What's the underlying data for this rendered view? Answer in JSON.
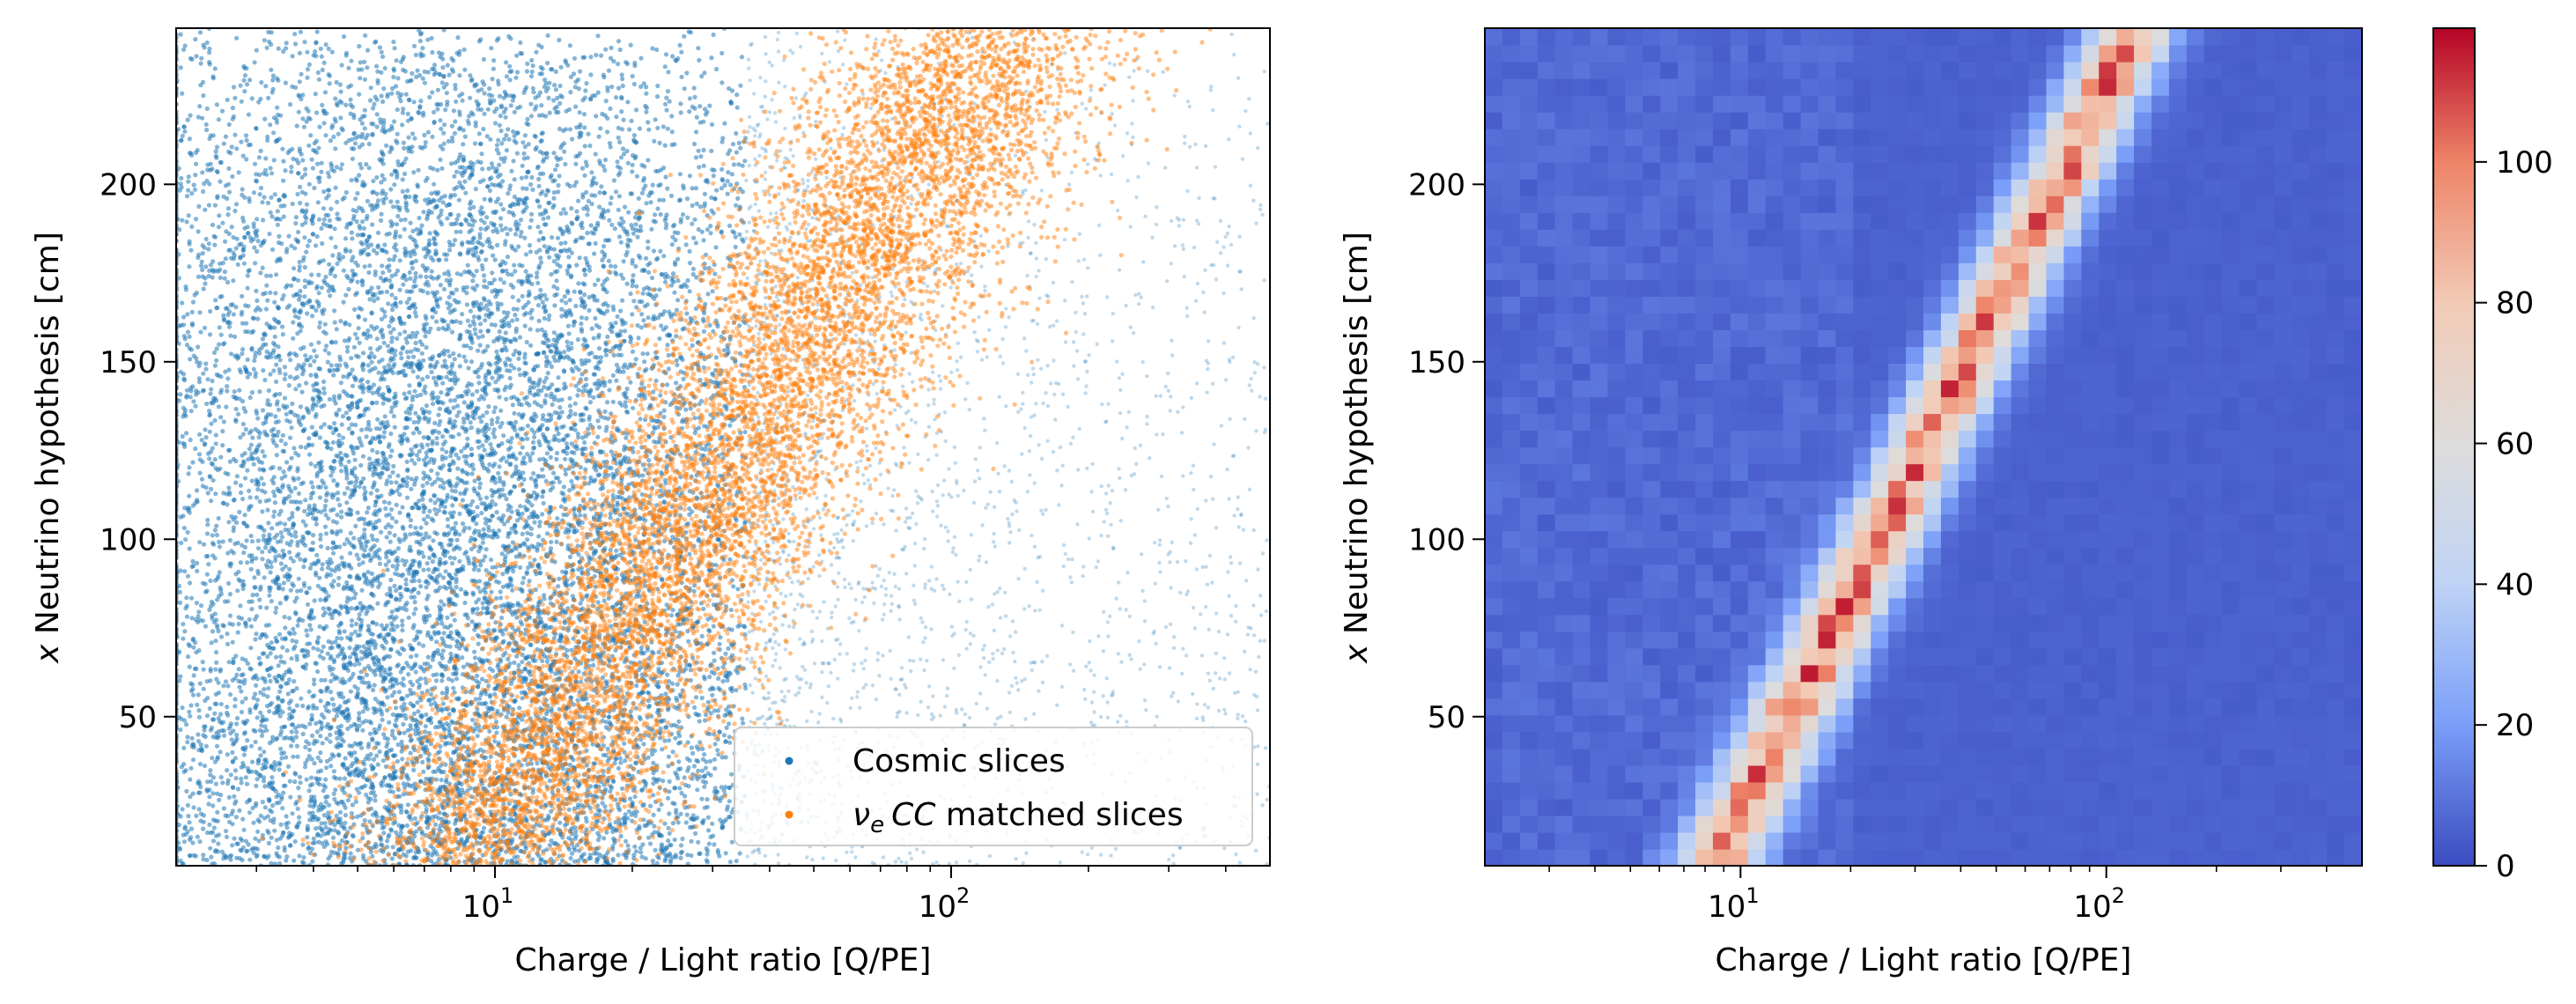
{
  "chart_data": [
    {
      "type": "scatter",
      "xlabel": "Charge / Light ratio [Q/PE]",
      "ylabel": "x Neutrino hypothesis [cm]",
      "ylabel_italic_part": "x",
      "ylabel_rest": " Neutrino hypothesis [cm]",
      "xscale": "log",
      "xlim": [
        2,
        500
      ],
      "ylim": [
        8,
        244
      ],
      "xticks": [
        {
          "value": 10,
          "base": "10",
          "exp": "1"
        },
        {
          "value": 100,
          "base": "10",
          "exp": "2"
        }
      ],
      "yticks": [
        50,
        100,
        150,
        200
      ],
      "legend_position": "lower right",
      "series": [
        {
          "name": "Cosmic slices",
          "color": "#1f77b4",
          "distribution": "broad cloud centred near Q/PE 8, x 50–244; density falls toward high Q/PE",
          "points_sampled": 14000
        },
        {
          "name": "νe CC matched slices",
          "name_parts": {
            "nu": "ν",
            "sub": "e",
            "cc": "CC",
            "rest": " matched slices"
          },
          "color": "#ff7f0e",
          "distribution": "diagonal band from (Q/PE 8, x 10) to (Q/PE 130, x 244)",
          "points_sampled": 9000
        }
      ]
    },
    {
      "type": "heatmap",
      "xlabel": "Charge / Light ratio [Q/PE]",
      "ylabel": "x Neutrino hypothesis [cm]",
      "ylabel_italic_part": "x",
      "ylabel_rest": " Neutrino hypothesis [cm]",
      "xscale": "log",
      "xlim": [
        2,
        500
      ],
      "ylim": [
        8,
        244
      ],
      "xticks": [
        {
          "value": 10,
          "base": "10",
          "exp": "1"
        },
        {
          "value": 100,
          "base": "10",
          "exp": "2"
        }
      ],
      "yticks": [
        50,
        100,
        150,
        200
      ],
      "colormap": "coolwarm",
      "colormap_stops": [
        "#3b4cc0",
        "#7b9ff9",
        "#c0d4f5",
        "#dddcdc",
        "#f2cbb7",
        "#ee8468",
        "#b40426"
      ],
      "colorbar_range": [
        0,
        119
      ],
      "colorbar_ticks": [
        0,
        20,
        40,
        60,
        80,
        100
      ],
      "bins_x": 50,
      "bins_y": 50,
      "ridge": {
        "q_at_bottom": 8.5,
        "q_at_top": 120,
        "peak_count": 119,
        "width_decades": 0.075
      },
      "background_count": 4
    }
  ]
}
